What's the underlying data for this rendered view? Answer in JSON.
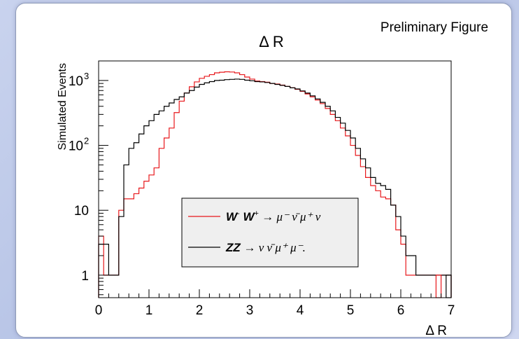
{
  "header": {
    "watermark": "Preliminary Figure"
  },
  "chart_data": {
    "type": "histogram",
    "title": "Δ R",
    "xlabel": "Δ R",
    "ylabel": "Simulated Events",
    "xlim": [
      0,
      7
    ],
    "ylim": [
      0.45,
      2000
    ],
    "yscale": "log",
    "grid": false,
    "legend_position": "center-bottom",
    "x_ticks": [
      {
        "value": 0,
        "label": "0"
      },
      {
        "value": 1,
        "label": "1"
      },
      {
        "value": 2,
        "label": "2"
      },
      {
        "value": 3,
        "label": "3"
      },
      {
        "value": 4,
        "label": "4"
      },
      {
        "value": 5,
        "label": "5"
      },
      {
        "value": 6,
        "label": "6"
      },
      {
        "value": 7,
        "label": "7"
      }
    ],
    "y_ticks": [
      {
        "value": 1,
        "label": "1"
      },
      {
        "value": 10,
        "label": "10"
      },
      {
        "value": 100,
        "label": "10",
        "exp": "2"
      },
      {
        "value": 1000,
        "label": "10",
        "exp": "3"
      }
    ],
    "bin_edges_step": 0.1,
    "bin_edges_start": 0.0,
    "series": [
      {
        "name": "W⁻ W⁺ → μ⁻ ν̄ μ⁺ ν",
        "name_parts": {
          "lhs": "W",
          "lhs_sup": "-",
          "lhs2": "W",
          "lhs2_sup": "+",
          "rhs": "→ μ⁻ ν̄ μ⁺ ν"
        },
        "color": "#e8181c",
        "values": [
          4,
          1,
          1,
          1,
          10,
          15,
          15,
          18,
          22,
          28,
          35,
          45,
          90,
          130,
          185,
          320,
          480,
          640,
          800,
          950,
          1080,
          1160,
          1230,
          1310,
          1340,
          1360,
          1350,
          1310,
          1230,
          1130,
          1050,
          980,
          960,
          940,
          900,
          880,
          850,
          810,
          770,
          730,
          680,
          620,
          560,
          500,
          440,
          370,
          300,
          240,
          185,
          140,
          100,
          70,
          47,
          32,
          24,
          20,
          16,
          15,
          12,
          5,
          3,
          1,
          1,
          1,
          1,
          1,
          1,
          1,
          1,
          1
        ]
      },
      {
        "name": "ZZ → ν ν̄ μ⁺ μ⁻.",
        "name_parts": {
          "lhs": "ZZ",
          "rhs": "→ ν ν̄ μ⁺ μ⁻."
        },
        "color": "#000000",
        "values": [
          3,
          3,
          1,
          1,
          8,
          50,
          90,
          110,
          150,
          200,
          240,
          300,
          340,
          400,
          450,
          510,
          560,
          640,
          700,
          790,
          870,
          920,
          960,
          1000,
          1010,
          1030,
          1040,
          1050,
          1040,
          1010,
          990,
          960,
          950,
          930,
          900,
          870,
          840,
          810,
          770,
          740,
          690,
          640,
          580,
          520,
          460,
          400,
          340,
          270,
          220,
          170,
          130,
          90,
          62,
          45,
          32,
          26,
          24,
          21,
          12,
          8,
          4,
          2,
          2,
          1,
          1,
          1,
          1,
          1,
          1,
          1
        ]
      }
    ],
    "overflow": [
      {
        "series": "ZZ → ν ν̄ μ⁺ μ⁻.",
        "x0": 6.9,
        "x1": 7.0,
        "value": 1
      },
      {
        "series": "W⁻ W⁺ → μ⁻ ν̄ μ⁺ ν",
        "x0": 6.7,
        "x1": 6.8,
        "value": 1
      }
    ]
  }
}
